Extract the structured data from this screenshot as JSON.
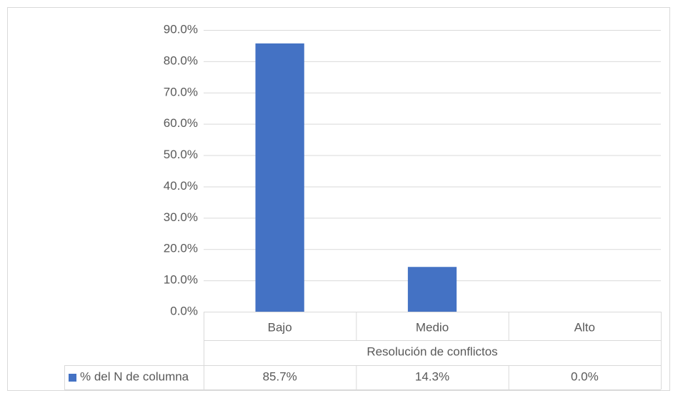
{
  "chart_data": {
    "type": "bar",
    "categories": [
      "Bajo",
      "Medio",
      "Alto"
    ],
    "xlabel": "Resolución de conflictos",
    "series": [
      {
        "name": "% del N de columna",
        "color": "#4472c4",
        "values": [
          85.7,
          14.3,
          0.0
        ],
        "value_labels": [
          "85.7%",
          "14.3%",
          "0.0%"
        ]
      }
    ],
    "ylim": [
      0,
      90
    ],
    "yticks": [
      {
        "value": 0,
        "label": "0.0%"
      },
      {
        "value": 10,
        "label": "10.0%"
      },
      {
        "value": 20,
        "label": "20.0%"
      },
      {
        "value": 30,
        "label": "30.0%"
      },
      {
        "value": 40,
        "label": "40.0%"
      },
      {
        "value": 50,
        "label": "50.0%"
      },
      {
        "value": 60,
        "label": "60.0%"
      },
      {
        "value": 70,
        "label": "70.0%"
      },
      {
        "value": 80,
        "label": "80.0%"
      },
      {
        "value": 90,
        "label": "90.0%"
      }
    ],
    "grid": true
  }
}
